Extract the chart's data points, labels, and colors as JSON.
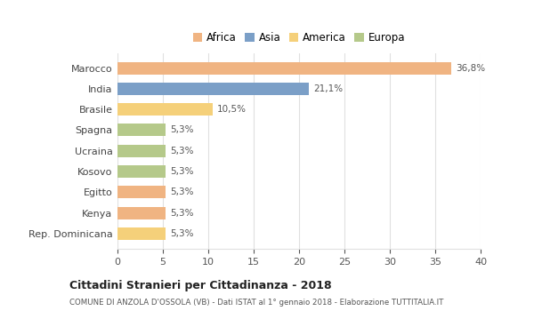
{
  "categories": [
    "Rep. Dominicana",
    "Kenya",
    "Egitto",
    "Kosovo",
    "Ucraina",
    "Spagna",
    "Brasile",
    "India",
    "Marocco"
  ],
  "values": [
    5.3,
    5.3,
    5.3,
    5.3,
    5.3,
    5.3,
    10.5,
    21.1,
    36.8
  ],
  "labels": [
    "5,3%",
    "5,3%",
    "5,3%",
    "5,3%",
    "5,3%",
    "5,3%",
    "10,5%",
    "21,1%",
    "36,8%"
  ],
  "colors": [
    "#f5d07a",
    "#f0b482",
    "#f0b482",
    "#b5c98a",
    "#b5c98a",
    "#b5c98a",
    "#f5d07a",
    "#7b9fc7",
    "#f0b482"
  ],
  "continents": [
    "Africa",
    "Asia",
    "America",
    "Europa"
  ],
  "legend_colors": [
    "#f0b482",
    "#7b9fc7",
    "#f5d07a",
    "#b5c98a"
  ],
  "xlim": [
    0,
    40
  ],
  "xticks": [
    0,
    5,
    10,
    15,
    20,
    25,
    30,
    35,
    40
  ],
  "title_bold": "Cittadini Stranieri per Cittadinanza - 2018",
  "subtitle": "COMUNE DI ANZOLA D'OSSOLA (VB) - Dati ISTAT al 1° gennaio 2018 - Elaborazione TUTTITALIA.IT",
  "background_color": "#ffffff",
  "grid_color": "#e0e0e0"
}
